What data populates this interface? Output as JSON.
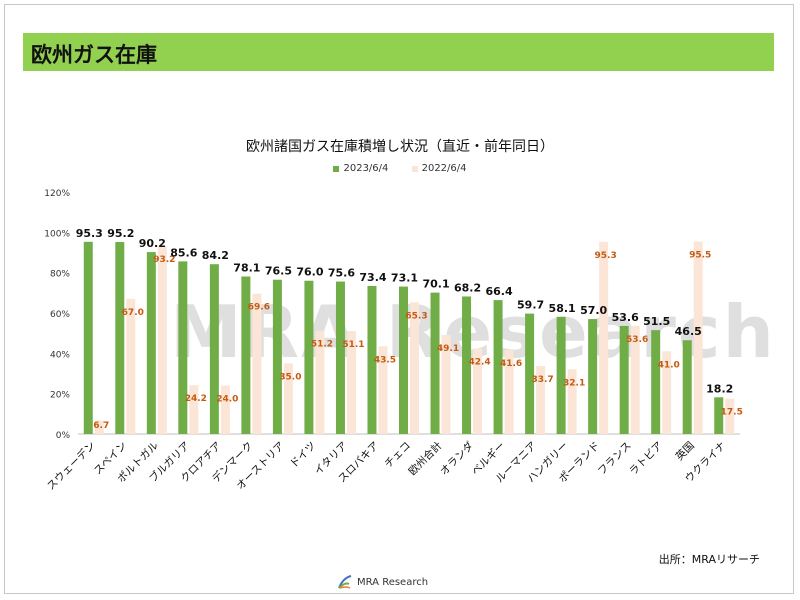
{
  "page": {
    "header_title": "欧州ガス在庫",
    "source": "出所：MRAリサーチ",
    "footer_brand": "MRA Research",
    "watermark": "MRA Research"
  },
  "colors": {
    "series1": "#70ad47",
    "series2": "#fbe5d6",
    "label2": "#c55a11",
    "header": "#92d050"
  },
  "chart_data": {
    "type": "bar",
    "title": "欧州諸国ガス在庫積増し状況（直近・前年同日）",
    "xlabel": "",
    "ylabel": "",
    "ylim": [
      0,
      120
    ],
    "yticks": [
      "0%",
      "20%",
      "40%",
      "60%",
      "80%",
      "100%",
      "120%"
    ],
    "legend_position": "top-center",
    "grid": false,
    "categories": [
      "スウェーデン",
      "スペイン",
      "ポルトガル",
      "ブルガリア",
      "クロアチア",
      "デンマーク",
      "オーストリア",
      "ドイツ",
      "イタリア",
      "スロバキア",
      "チェコ",
      "欧州合計",
      "オランダ",
      "ベルギー",
      "ルーマニア",
      "ハンガリー",
      "ポーランド",
      "フランス",
      "ラトビア",
      "英国",
      "ウクライナ"
    ],
    "series": [
      {
        "name": "2023/6/4",
        "values": [
          95.3,
          95.2,
          90.2,
          85.6,
          84.2,
          78.1,
          76.5,
          76.0,
          75.6,
          73.4,
          73.1,
          70.1,
          68.2,
          66.4,
          59.7,
          58.1,
          57.0,
          53.6,
          51.5,
          46.5,
          18.2
        ],
        "labels": [
          "95.3",
          "95.2",
          "90.2",
          "85.6",
          "84.2",
          "78.1",
          "76.5",
          "76.0",
          "75.6",
          "73.4",
          "73.1",
          "70.1",
          "68.2",
          "66.4",
          "59.7",
          "58.1",
          "57.0",
          "53.6",
          "51.5",
          "46.5",
          "18.2"
        ]
      },
      {
        "name": "2022/6/4",
        "values": [
          6.7,
          67.0,
          93.2,
          24.2,
          24.0,
          69.6,
          35.0,
          51.2,
          51.1,
          43.5,
          65.3,
          49.1,
          42.4,
          41.6,
          33.7,
          32.1,
          95.3,
          53.6,
          41.0,
          95.5,
          17.5
        ],
        "labels": [
          "6.7",
          "67.0",
          "93.2",
          "24.2",
          "24.0",
          "69.6",
          "35.0",
          "51.2",
          "51.1",
          "43.5",
          "65.3",
          "49.1",
          "42.4",
          "41.6",
          "33.7",
          "32.1",
          "95.3",
          "53.6",
          "41.0",
          "95.5",
          "17.5"
        ]
      }
    ]
  }
}
